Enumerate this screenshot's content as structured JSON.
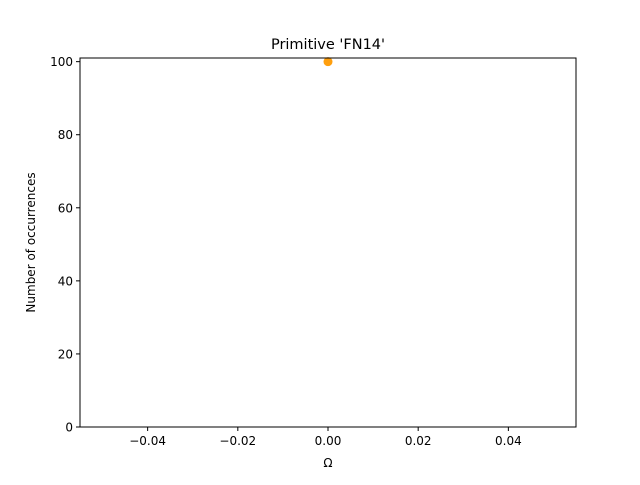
{
  "chart_data": {
    "type": "scatter",
    "title": "Primitive 'FN14'",
    "xlabel": "Ω",
    "ylabel": "Number of occurrences",
    "xlim": [
      -0.055,
      0.055
    ],
    "ylim": [
      0,
      101
    ],
    "xticks": [
      -0.04,
      -0.02,
      0.0,
      0.02,
      0.04
    ],
    "xtick_labels": [
      "−0.04",
      "−0.02",
      "0.00",
      "0.02",
      "0.04"
    ],
    "yticks": [
      0,
      20,
      40,
      60,
      80,
      100
    ],
    "ytick_labels": [
      "0",
      "20",
      "40",
      "60",
      "80",
      "100"
    ],
    "grid": false,
    "series": [
      {
        "color": "#ff9f0e",
        "points": [
          {
            "x": 0.0,
            "y": 100
          }
        ]
      }
    ]
  }
}
